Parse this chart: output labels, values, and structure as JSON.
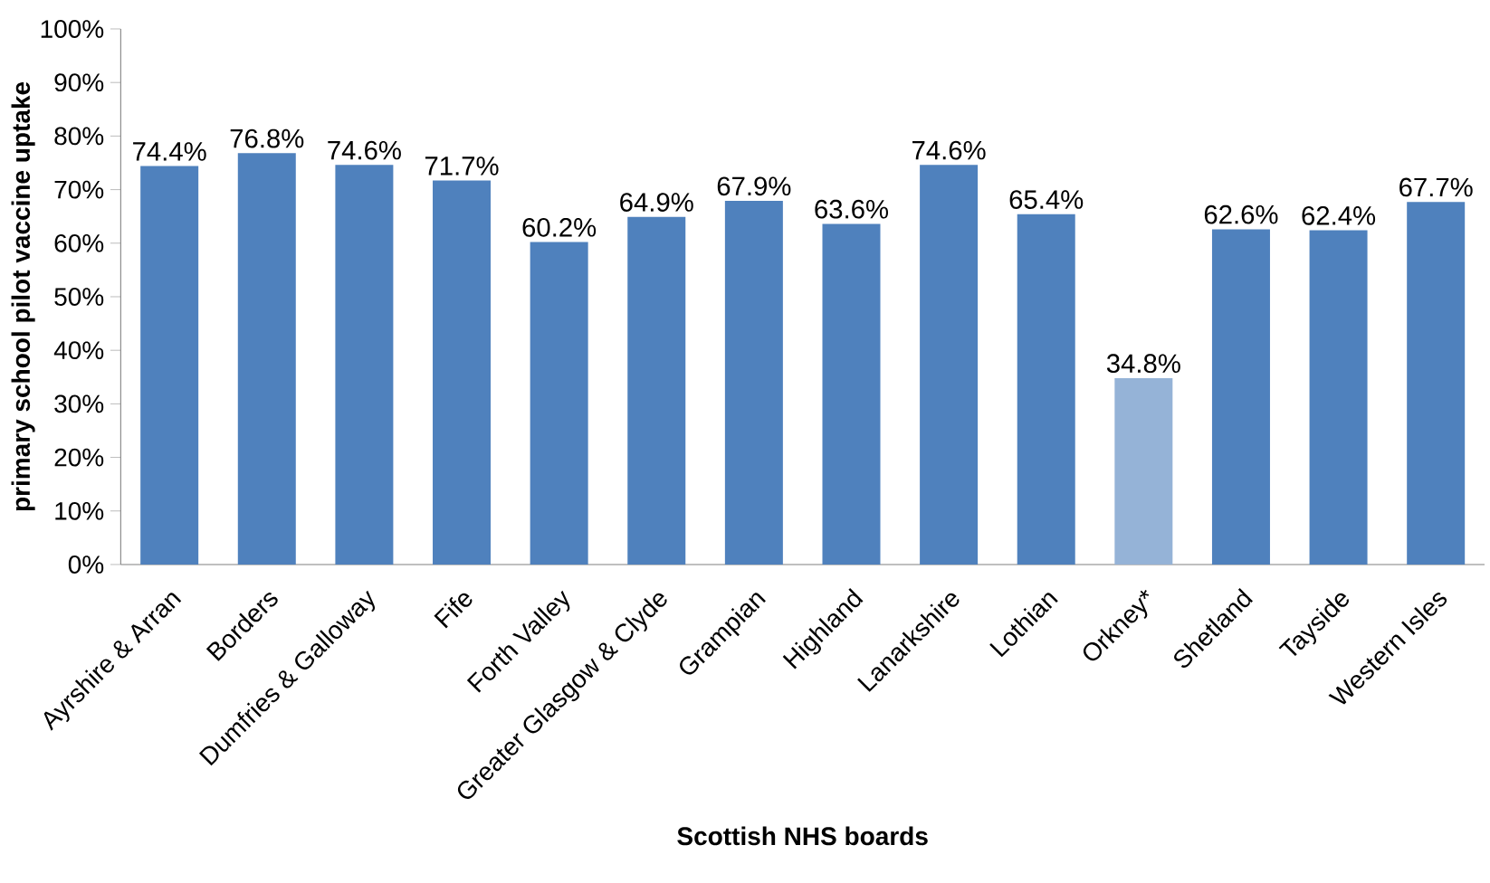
{
  "chart_data": {
    "type": "bar",
    "xlabel": "Scottish NHS boards",
    "ylabel": "primary school pilot vaccine uptake",
    "categories": [
      "Ayrshire & Arran",
      "Borders",
      "Dumfries & Galloway",
      "Fife",
      "Forth Valley",
      "Greater Glasgow & Clyde",
      "Grampian",
      "Highland",
      "Lanarkshire",
      "Lothian",
      "Orkney*",
      "Shetland",
      "Tayside",
      "Western Isles"
    ],
    "values": [
      74.4,
      76.8,
      74.6,
      71.7,
      60.2,
      64.9,
      67.9,
      63.6,
      74.6,
      65.4,
      34.8,
      62.6,
      62.4,
      67.7
    ],
    "value_labels": [
      "74.4%",
      "76.8%",
      "74.6%",
      "71.7%",
      "60.2%",
      "64.9%",
      "67.9%",
      "63.6%",
      "74.6%",
      "65.4%",
      "34.8%",
      "62.6%",
      "62.4%",
      "67.7%"
    ],
    "colors": [
      "#4f81bd",
      "#4f81bd",
      "#4f81bd",
      "#4f81bd",
      "#4f81bd",
      "#4f81bd",
      "#4f81bd",
      "#4f81bd",
      "#4f81bd",
      "#4f81bd",
      "#95b3d7",
      "#4f81bd",
      "#4f81bd",
      "#4f81bd"
    ],
    "ylim": [
      0,
      100
    ],
    "yticks": [
      {
        "value": 0,
        "label": "0%"
      },
      {
        "value": 10,
        "label": "10%"
      },
      {
        "value": 20,
        "label": "20%"
      },
      {
        "value": 30,
        "label": "30%"
      },
      {
        "value": 40,
        "label": "40%"
      },
      {
        "value": 50,
        "label": "50%"
      },
      {
        "value": 60,
        "label": "60%"
      },
      {
        "value": 70,
        "label": "70%"
      },
      {
        "value": 80,
        "label": "80%"
      },
      {
        "value": 90,
        "label": "90%"
      },
      {
        "value": 100,
        "label": "100%"
      }
    ]
  }
}
